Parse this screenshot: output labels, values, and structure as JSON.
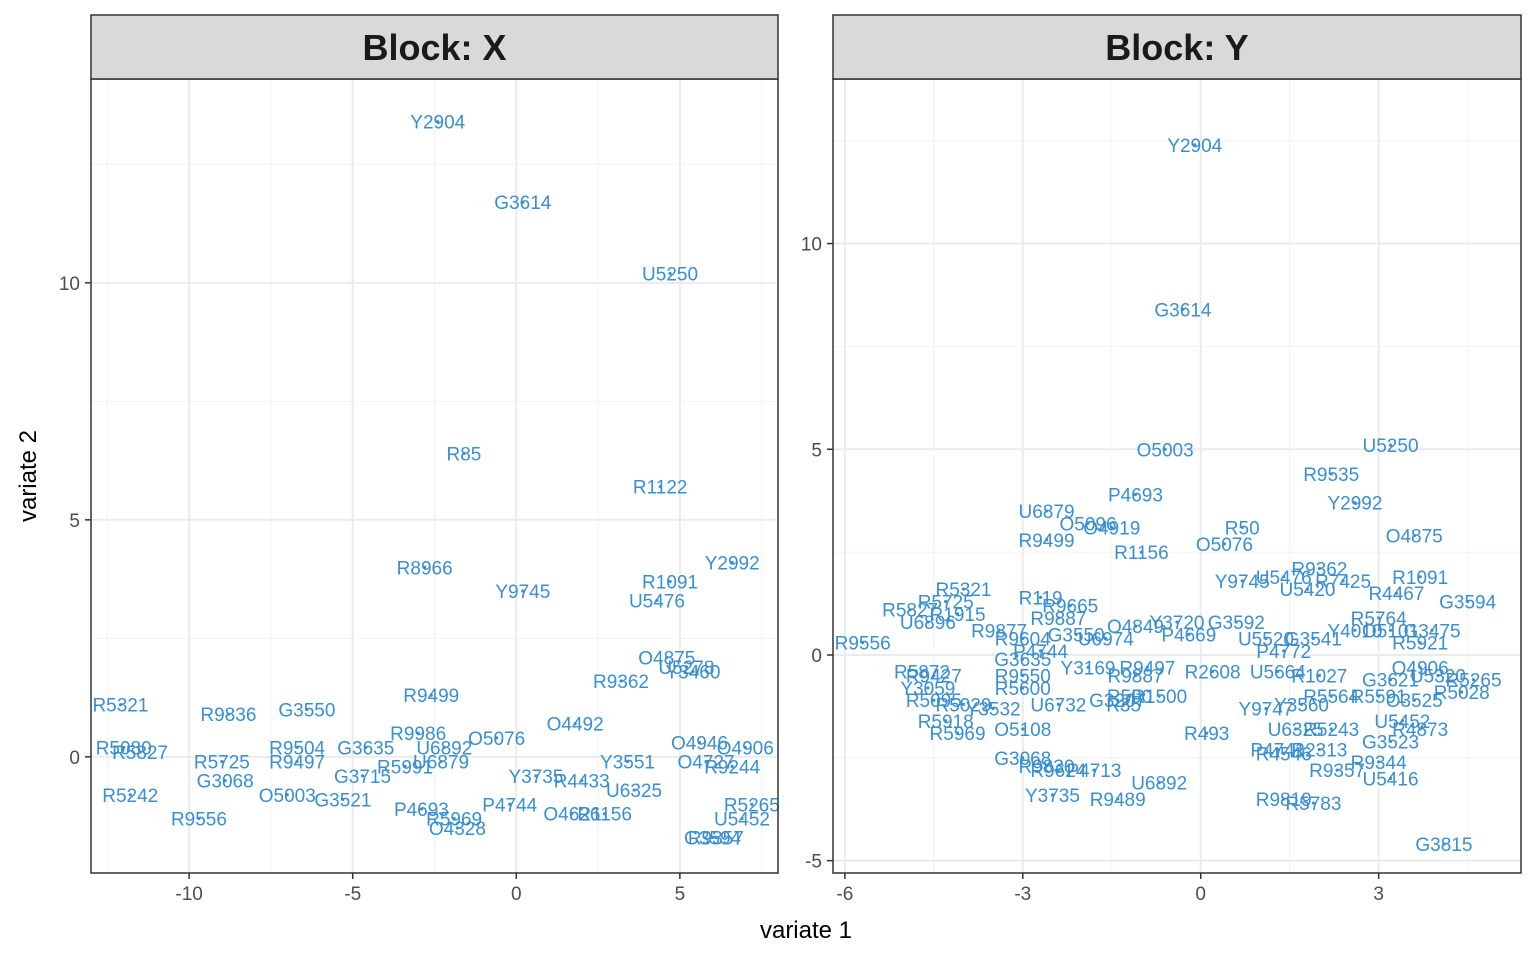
{
  "chart_data": {
    "type": "scatter",
    "xlabel": "variate 1",
    "ylabel": "variate 2",
    "grid": true,
    "legend": "none",
    "point_color": "#3a8fd0",
    "panels": [
      {
        "title": "Block: X",
        "xlim": [
          -13.0,
          8.0
        ],
        "ylim": [
          -2.45,
          14.3
        ],
        "xticks": [
          -10,
          -5,
          0,
          5
        ],
        "xtick_labels": [
          "-10",
          "-5",
          "0",
          "5"
        ],
        "yticks": [
          0,
          5,
          10
        ],
        "ytick_labels": [
          "0",
          "5",
          "10"
        ],
        "points": [
          {
            "label": "Y2904",
            "x": -2.4,
            "y": 13.4
          },
          {
            "label": "G3614",
            "x": 0.2,
            "y": 11.7
          },
          {
            "label": "U5250",
            "x": 4.7,
            "y": 10.2
          },
          {
            "label": "R85",
            "x": -1.6,
            "y": 6.4
          },
          {
            "label": "R1122",
            "x": 4.4,
            "y": 5.7
          },
          {
            "label": "R8966",
            "x": -2.8,
            "y": 4.0
          },
          {
            "label": "Y2992",
            "x": 6.6,
            "y": 4.1
          },
          {
            "label": "Y9745",
            "x": 0.2,
            "y": 3.5
          },
          {
            "label": "R1091",
            "x": 4.7,
            "y": 3.7
          },
          {
            "label": "U5476",
            "x": 4.3,
            "y": 3.3
          },
          {
            "label": "O4875",
            "x": 4.6,
            "y": 2.1
          },
          {
            "label": "U5278",
            "x": 5.2,
            "y": 1.9
          },
          {
            "label": "Y3460",
            "x": 5.4,
            "y": 1.8
          },
          {
            "label": "R9362",
            "x": 3.2,
            "y": 1.6
          },
          {
            "label": "R5321",
            "x": -12.1,
            "y": 1.1
          },
          {
            "label": "R9499",
            "x": -2.6,
            "y": 1.3
          },
          {
            "label": "R9836",
            "x": -8.8,
            "y": 0.9
          },
          {
            "label": "G3550",
            "x": -6.4,
            "y": 1.0
          },
          {
            "label": "O4492",
            "x": 1.8,
            "y": 0.7
          },
          {
            "label": "R9986",
            "x": -3.0,
            "y": 0.5
          },
          {
            "label": "O5076",
            "x": -0.6,
            "y": 0.4
          },
          {
            "label": "U6892",
            "x": -2.2,
            "y": 0.2
          },
          {
            "label": "O4946",
            "x": 5.6,
            "y": 0.3
          },
          {
            "label": "O4906",
            "x": 7.0,
            "y": 0.2
          },
          {
            "label": "R5080",
            "x": -12.0,
            "y": 0.2
          },
          {
            "label": "R5827",
            "x": -11.5,
            "y": 0.1
          },
          {
            "label": "R5725",
            "x": -9.0,
            "y": -0.1
          },
          {
            "label": "R9504",
            "x": -6.7,
            "y": 0.2
          },
          {
            "label": "G3635",
            "x": -4.6,
            "y": 0.2
          },
          {
            "label": "U6879",
            "x": -2.3,
            "y": -0.1
          },
          {
            "label": "R9497",
            "x": -6.7,
            "y": -0.1
          },
          {
            "label": "R5991",
            "x": -3.4,
            "y": -0.2
          },
          {
            "label": "Y3551",
            "x": 3.4,
            "y": -0.1
          },
          {
            "label": "R5242",
            "x": -11.8,
            "y": -0.8
          },
          {
            "label": "R9556",
            "x": -9.7,
            "y": -1.3
          },
          {
            "label": "G3068",
            "x": -8.9,
            "y": -0.5
          },
          {
            "label": "O5003",
            "x": -7.0,
            "y": -0.8
          },
          {
            "label": "G3521",
            "x": -5.3,
            "y": -0.9
          },
          {
            "label": "P4693",
            "x": -2.9,
            "y": -1.1
          },
          {
            "label": "R5969",
            "x": -1.9,
            "y": -1.3
          },
          {
            "label": "O4328",
            "x": -1.8,
            "y": -1.5
          },
          {
            "label": "O4626",
            "x": 1.7,
            "y": -1.2
          },
          {
            "label": "G3594",
            "x": 6.0,
            "y": -1.7
          },
          {
            "label": "R9357",
            "x": 6.1,
            "y": -1.7
          },
          {
            "label": "U5452",
            "x": 6.9,
            "y": -1.3
          },
          {
            "label": "R5265",
            "x": 7.2,
            "y": -1.0
          },
          {
            "label": "Y3735",
            "x": 0.6,
            "y": -0.4
          },
          {
            "label": "R4433",
            "x": 2.0,
            "y": -0.5
          },
          {
            "label": "U6325",
            "x": 3.6,
            "y": -0.7
          },
          {
            "label": "O4727",
            "x": 5.8,
            "y": -0.1
          },
          {
            "label": "R9244",
            "x": 6.6,
            "y": -0.2
          },
          {
            "label": "G3715",
            "x": -4.7,
            "y": -0.4
          },
          {
            "label": "P4744",
            "x": -0.2,
            "y": -1.0
          },
          {
            "label": "R1156",
            "x": 2.7,
            "y": -1.2
          }
        ]
      },
      {
        "title": "Block: Y",
        "xlim": [
          -6.2,
          5.4
        ],
        "ylim": [
          -5.3,
          14.0
        ],
        "xticks": [
          -6,
          -3,
          0,
          3
        ],
        "xtick_labels": [
          "-6",
          "-3",
          "0",
          "3"
        ],
        "yticks": [
          -5,
          0,
          5,
          10
        ],
        "ytick_labels": [
          "-5",
          "0",
          "5",
          "10"
        ],
        "points": [
          {
            "label": "Y2904",
            "x": -0.1,
            "y": 12.4
          },
          {
            "label": "G3614",
            "x": -0.3,
            "y": 8.4
          },
          {
            "label": "U5250",
            "x": 3.2,
            "y": 5.1
          },
          {
            "label": "O5003",
            "x": -0.6,
            "y": 5.0
          },
          {
            "label": "R9535",
            "x": 2.2,
            "y": 4.4
          },
          {
            "label": "P4693",
            "x": -1.1,
            "y": 3.9
          },
          {
            "label": "Y2992",
            "x": 2.6,
            "y": 3.7
          },
          {
            "label": "U6879",
            "x": -2.6,
            "y": 3.5
          },
          {
            "label": "O5096",
            "x": -1.9,
            "y": 3.2
          },
          {
            "label": "O4919",
            "x": -1.5,
            "y": 3.1
          },
          {
            "label": "O4875",
            "x": 3.6,
            "y": 2.9
          },
          {
            "label": "R50",
            "x": 0.7,
            "y": 3.1
          },
          {
            "label": "R9499",
            "x": -2.6,
            "y": 2.8
          },
          {
            "label": "O5076",
            "x": 0.4,
            "y": 2.7
          },
          {
            "label": "R1156",
            "x": -1.0,
            "y": 2.5
          },
          {
            "label": "R9362",
            "x": 2.0,
            "y": 2.1
          },
          {
            "label": "R1091",
            "x": 3.7,
            "y": 1.9
          },
          {
            "label": "Y9745",
            "x": 0.7,
            "y": 1.8
          },
          {
            "label": "U5476",
            "x": 1.4,
            "y": 1.9
          },
          {
            "label": "U5420",
            "x": 1.8,
            "y": 1.6
          },
          {
            "label": "R7425",
            "x": 2.4,
            "y": 1.8
          },
          {
            "label": "R4467",
            "x": 3.3,
            "y": 1.5
          },
          {
            "label": "G3594",
            "x": 4.5,
            "y": 1.3
          },
          {
            "label": "R5321",
            "x": -4.0,
            "y": 1.6
          },
          {
            "label": "R5725",
            "x": -4.3,
            "y": 1.3
          },
          {
            "label": "R1915",
            "x": -4.1,
            "y": 1.0
          },
          {
            "label": "R5827",
            "x": -4.9,
            "y": 1.1
          },
          {
            "label": "U6896",
            "x": -4.6,
            "y": 0.8
          },
          {
            "label": "R119",
            "x": -2.7,
            "y": 1.4
          },
          {
            "label": "R9665",
            "x": -2.2,
            "y": 1.2
          },
          {
            "label": "R9887",
            "x": -2.4,
            "y": 0.9
          },
          {
            "label": "O4849",
            "x": -1.1,
            "y": 0.7
          },
          {
            "label": "Y3720",
            "x": -0.4,
            "y": 0.8
          },
          {
            "label": "G3592",
            "x": 0.6,
            "y": 0.8
          },
          {
            "label": "P4669",
            "x": -0.2,
            "y": 0.5
          },
          {
            "label": "R9877",
            "x": -3.4,
            "y": 0.6
          },
          {
            "label": "R9604",
            "x": -3.0,
            "y": 0.4
          },
          {
            "label": "G3550",
            "x": -2.1,
            "y": 0.5
          },
          {
            "label": "U6974",
            "x": -1.6,
            "y": 0.4
          },
          {
            "label": "R5764",
            "x": 3.0,
            "y": 0.9
          },
          {
            "label": "O5101",
            "x": 3.2,
            "y": 0.6
          },
          {
            "label": "G3475",
            "x": 3.9,
            "y": 0.6
          },
          {
            "label": "U5520",
            "x": 1.1,
            "y": 0.4
          },
          {
            "label": "G3541",
            "x": 1.9,
            "y": 0.4
          },
          {
            "label": "Y4010",
            "x": 2.6,
            "y": 0.6
          },
          {
            "label": "R5921",
            "x": 3.7,
            "y": 0.3
          },
          {
            "label": "R9556",
            "x": -5.7,
            "y": 0.3
          },
          {
            "label": "P4772",
            "x": 1.4,
            "y": 0.1
          },
          {
            "label": "G3635",
            "x": -3.0,
            "y": -0.1
          },
          {
            "label": "P4744",
            "x": -2.7,
            "y": 0.1
          },
          {
            "label": "Y3169",
            "x": -1.9,
            "y": -0.3
          },
          {
            "label": "R9497",
            "x": -0.9,
            "y": -0.3
          },
          {
            "label": "O4906",
            "x": 3.7,
            "y": -0.3
          },
          {
            "label": "R5872",
            "x": -4.7,
            "y": -0.4
          },
          {
            "label": "R9427",
            "x": -4.5,
            "y": -0.5
          },
          {
            "label": "Y3059",
            "x": -4.6,
            "y": -0.8
          },
          {
            "label": "R9550",
            "x": -3.0,
            "y": -0.5
          },
          {
            "label": "R9887",
            "x": -1.1,
            "y": -0.5
          },
          {
            "label": "R2608",
            "x": 0.2,
            "y": -0.4
          },
          {
            "label": "U5664",
            "x": 1.3,
            "y": -0.4
          },
          {
            "label": "R1027",
            "x": 2.0,
            "y": -0.5
          },
          {
            "label": "G3621",
            "x": 3.2,
            "y": -0.6
          },
          {
            "label": "U5320",
            "x": 4.0,
            "y": -0.5
          },
          {
            "label": "R5265",
            "x": 4.6,
            "y": -0.6
          },
          {
            "label": "R5028",
            "x": 4.4,
            "y": -0.9
          },
          {
            "label": "R5600",
            "x": -3.0,
            "y": -0.8
          },
          {
            "label": "R500",
            "x": -1.2,
            "y": -1.0
          },
          {
            "label": "R1500",
            "x": -0.7,
            "y": -1.0
          },
          {
            "label": "G3207",
            "x": -1.4,
            "y": -1.1
          },
          {
            "label": "R5095",
            "x": -4.5,
            "y": -1.1
          },
          {
            "label": "R5029",
            "x": -4.0,
            "y": -1.2
          },
          {
            "label": "Y3532",
            "x": -3.5,
            "y": -1.3
          },
          {
            "label": "U6732",
            "x": -2.4,
            "y": -1.2
          },
          {
            "label": "R35",
            "x": -1.3,
            "y": -1.2
          },
          {
            "label": "Y3560",
            "x": 1.7,
            "y": -1.2
          },
          {
            "label": "R5564",
            "x": 2.2,
            "y": -1.0
          },
          {
            "label": "R5591",
            "x": 3.0,
            "y": -1.0
          },
          {
            "label": "O3525",
            "x": 3.6,
            "y": -1.1
          },
          {
            "label": "Y9747",
            "x": 1.1,
            "y": -1.3
          },
          {
            "label": "R5918",
            "x": -4.3,
            "y": -1.6
          },
          {
            "label": "R5969",
            "x": -4.1,
            "y": -1.9
          },
          {
            "label": "O5108",
            "x": -3.0,
            "y": -1.8
          },
          {
            "label": "R493",
            "x": 0.1,
            "y": -1.9
          },
          {
            "label": "U6325",
            "x": 1.6,
            "y": -1.8
          },
          {
            "label": "R5243",
            "x": 2.2,
            "y": -1.8
          },
          {
            "label": "U5452",
            "x": 3.4,
            "y": -1.6
          },
          {
            "label": "R4873",
            "x": 3.7,
            "y": -1.8
          },
          {
            "label": "G3523",
            "x": 3.2,
            "y": -2.1
          },
          {
            "label": "P4741",
            "x": 1.3,
            "y": -2.3
          },
          {
            "label": "R2313",
            "x": 2.0,
            "y": -2.3
          },
          {
            "label": "R4546",
            "x": 1.4,
            "y": -2.4
          },
          {
            "label": "R9344",
            "x": 3.0,
            "y": -2.6
          },
          {
            "label": "R9357",
            "x": 2.3,
            "y": -2.8
          },
          {
            "label": "U5416",
            "x": 3.2,
            "y": -3.0
          },
          {
            "label": "G3068",
            "x": -3.0,
            "y": -2.5
          },
          {
            "label": "R9830",
            "x": -2.6,
            "y": -2.7
          },
          {
            "label": "R9624",
            "x": -2.4,
            "y": -2.8
          },
          {
            "label": "P4713",
            "x": -1.8,
            "y": -2.8
          },
          {
            "label": "U6892",
            "x": -0.7,
            "y": -3.1
          },
          {
            "label": "Y3735",
            "x": -2.5,
            "y": -3.4
          },
          {
            "label": "R9489",
            "x": -1.4,
            "y": -3.5
          },
          {
            "label": "R9819",
            "x": 1.4,
            "y": -3.5
          },
          {
            "label": "R5783",
            "x": 1.9,
            "y": -3.6
          },
          {
            "label": "G3815",
            "x": 4.1,
            "y": -4.6
          }
        ]
      }
    ]
  }
}
